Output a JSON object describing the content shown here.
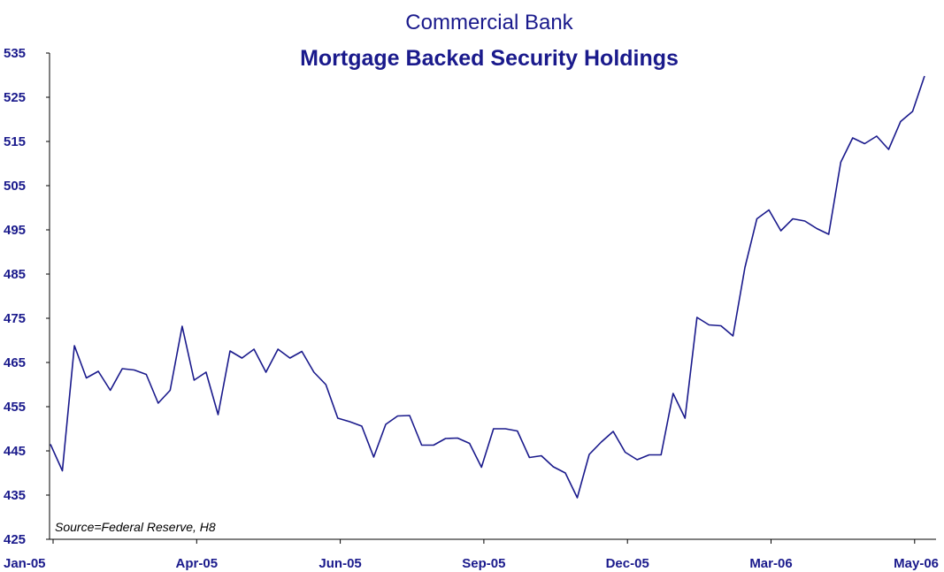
{
  "chart_data": {
    "type": "line",
    "title": "Commercial Bank",
    "subtitle": "Mortgage Backed Security Holdings",
    "source": "Source=Federal Reserve, H8",
    "xlabel": "",
    "ylabel": "",
    "ylim": [
      425,
      535
    ],
    "y_ticks": [
      535,
      525,
      515,
      505,
      495,
      485,
      475,
      465,
      455,
      445,
      435,
      425
    ],
    "x_tick_labels": [
      "Jan-05",
      "Apr-05",
      "Jun-05",
      "Sep-05",
      "Dec-05",
      "Mar-06",
      "May-06"
    ],
    "grid": false,
    "legend": "none",
    "line_color": "#1a1a8c",
    "series": [
      {
        "values": [
          446.5,
          440.5,
          468.8,
          461.5,
          463.0,
          458.7,
          463.6,
          463.3,
          462.3,
          455.8,
          458.7,
          473.2,
          461.0,
          462.8,
          453.2,
          467.6,
          466.0,
          468.0,
          462.8,
          468.0,
          466.0,
          467.5,
          462.8,
          460.0,
          452.4,
          451.6,
          450.6,
          443.6,
          451.0,
          452.9,
          453.0,
          446.3,
          446.3,
          447.8,
          447.9,
          446.7,
          441.3,
          450.0,
          450.0,
          449.5,
          443.5,
          443.9,
          441.4,
          440.0,
          434.4,
          444.2,
          447.0,
          449.4,
          444.7,
          443.0,
          444.1,
          444.1,
          458.0,
          452.4,
          475.2,
          473.5,
          473.3,
          471.0,
          486.5,
          497.5,
          499.5,
          494.8,
          497.5,
          497.0,
          495.3,
          494.0,
          510.3,
          515.8,
          514.5,
          516.2,
          513.2,
          519.5,
          521.8,
          529.8
        ]
      }
    ]
  }
}
